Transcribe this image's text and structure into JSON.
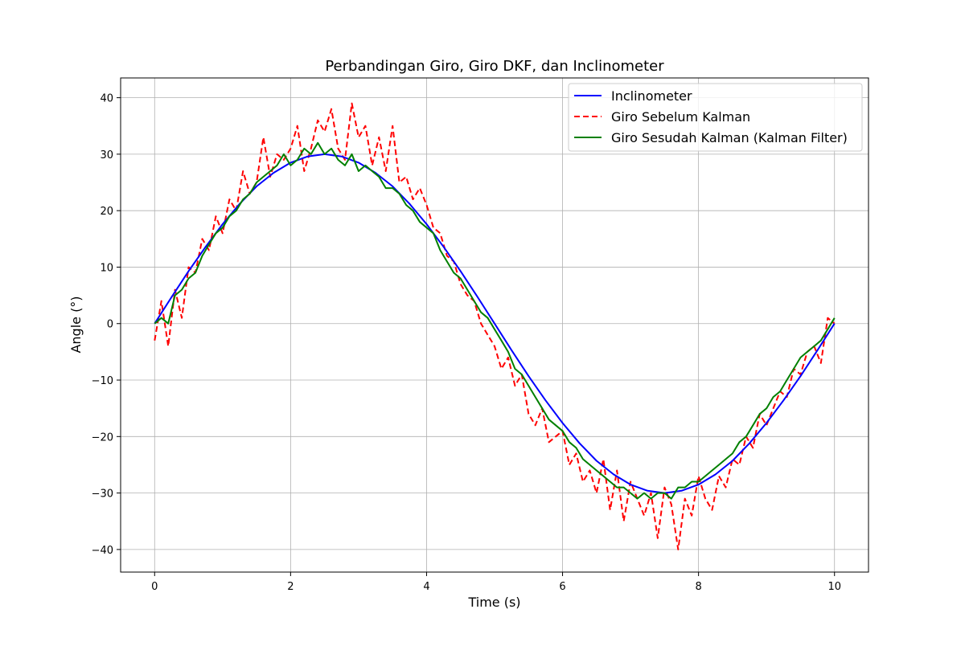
{
  "chart_data": {
    "type": "line",
    "title": "Perbandingan Giro, Giro DKF, dan Inclinometer",
    "xlabel": "Time (s)",
    "ylabel": "Angle (°)",
    "xlim": [
      -0.5,
      10.5
    ],
    "ylim": [
      -44,
      43.5
    ],
    "xticks": [
      0,
      2,
      4,
      6,
      8,
      10
    ],
    "yticks": [
      -40,
      -30,
      -20,
      -10,
      0,
      10,
      20,
      30,
      40
    ],
    "grid": true,
    "legend_position": "upper-right",
    "series": [
      {
        "name": "Inclinometer",
        "color": "#0000ff",
        "style": "solid",
        "x": [
          0,
          0.25,
          0.5,
          0.75,
          1,
          1.25,
          1.5,
          1.75,
          2,
          2.25,
          2.5,
          2.75,
          3,
          3.25,
          3.5,
          3.75,
          4,
          4.25,
          4.5,
          4.75,
          5,
          5.25,
          5.5,
          5.75,
          6,
          6.25,
          6.5,
          6.75,
          7,
          7.25,
          7.5,
          7.75,
          8,
          8.25,
          8.5,
          8.75,
          9,
          9.25,
          9.5,
          9.75,
          10
        ],
        "y": [
          0,
          4.7,
          9.3,
          13.6,
          17.6,
          21.2,
          24.3,
          26.7,
          28.5,
          29.6,
          30,
          29.6,
          28.5,
          26.7,
          24.3,
          21.2,
          17.6,
          13.6,
          9.3,
          4.7,
          0,
          -4.7,
          -9.3,
          -13.6,
          -17.6,
          -21.2,
          -24.3,
          -26.7,
          -28.5,
          -29.6,
          -30,
          -29.6,
          -28.5,
          -26.7,
          -24.3,
          -21.2,
          -17.6,
          -13.6,
          -9.3,
          -4.7,
          0
        ]
      },
      {
        "name": "Giro Sebelum Kalman",
        "color": "#ff0000",
        "style": "dashed",
        "x": [
          0,
          0.1,
          0.2,
          0.3,
          0.4,
          0.5,
          0.6,
          0.7,
          0.8,
          0.9,
          1.0,
          1.1,
          1.2,
          1.3,
          1.4,
          1.5,
          1.6,
          1.7,
          1.8,
          1.9,
          2.0,
          2.1,
          2.2,
          2.3,
          2.4,
          2.5,
          2.6,
          2.7,
          2.8,
          2.9,
          3.0,
          3.1,
          3.2,
          3.3,
          3.4,
          3.5,
          3.6,
          3.7,
          3.8,
          3.9,
          4.0,
          4.1,
          4.2,
          4.3,
          4.4,
          4.5,
          4.6,
          4.7,
          4.8,
          4.9,
          5.0,
          5.1,
          5.2,
          5.3,
          5.4,
          5.5,
          5.6,
          5.7,
          5.8,
          5.9,
          6.0,
          6.1,
          6.2,
          6.3,
          6.4,
          6.5,
          6.6,
          6.7,
          6.8,
          6.9,
          7.0,
          7.1,
          7.2,
          7.3,
          7.4,
          7.5,
          7.6,
          7.7,
          7.8,
          7.9,
          8.0,
          8.1,
          8.2,
          8.3,
          8.4,
          8.5,
          8.6,
          8.7,
          8.8,
          8.9,
          9.0,
          9.1,
          9.2,
          9.3,
          9.4,
          9.5,
          9.6,
          9.7,
          9.8,
          9.9,
          10.0
        ],
        "y": [
          -3,
          4,
          -4,
          6,
          1,
          10,
          9,
          15,
          13,
          19,
          16,
          22,
          20,
          27,
          23,
          25,
          33,
          26,
          30,
          29,
          31,
          35,
          27,
          31,
          36,
          34,
          38,
          31,
          29,
          39,
          33,
          35,
          28,
          33,
          27,
          35,
          25,
          26,
          22,
          24,
          21,
          17,
          16,
          12,
          11,
          7,
          5,
          4,
          0,
          -2,
          -4,
          -8,
          -6,
          -11,
          -9,
          -16,
          -18,
          -15,
          -21,
          -20,
          -19,
          -25,
          -23,
          -28,
          -26,
          -30,
          -24,
          -33,
          -26,
          -35,
          -28,
          -31,
          -34,
          -30,
          -38,
          -29,
          -32,
          -40,
          -31,
          -34,
          -27,
          -31,
          -33,
          -27,
          -29,
          -24,
          -25,
          -20,
          -22,
          -16,
          -18,
          -15,
          -12,
          -13,
          -8,
          -9,
          -5,
          -4,
          -7,
          1,
          0
        ]
      },
      {
        "name": "Giro Sesudah Kalman (Kalman Filter)",
        "color": "#008000",
        "style": "solid",
        "x": [
          0,
          0.1,
          0.2,
          0.3,
          0.4,
          0.5,
          0.6,
          0.7,
          0.8,
          0.9,
          1.0,
          1.1,
          1.2,
          1.3,
          1.4,
          1.5,
          1.6,
          1.7,
          1.8,
          1.9,
          2.0,
          2.1,
          2.2,
          2.3,
          2.4,
          2.5,
          2.6,
          2.7,
          2.8,
          2.9,
          3.0,
          3.1,
          3.2,
          3.3,
          3.4,
          3.5,
          3.6,
          3.7,
          3.8,
          3.9,
          4.0,
          4.1,
          4.2,
          4.3,
          4.4,
          4.5,
          4.6,
          4.7,
          4.8,
          4.9,
          5.0,
          5.1,
          5.2,
          5.3,
          5.4,
          5.5,
          5.6,
          5.7,
          5.8,
          5.9,
          6.0,
          6.1,
          6.2,
          6.3,
          6.4,
          6.5,
          6.6,
          6.7,
          6.8,
          6.9,
          7.0,
          7.1,
          7.2,
          7.3,
          7.4,
          7.5,
          7.6,
          7.7,
          7.8,
          7.9,
          8.0,
          8.1,
          8.2,
          8.3,
          8.4,
          8.5,
          8.6,
          8.7,
          8.8,
          8.9,
          9.0,
          9.1,
          9.2,
          9.3,
          9.4,
          9.5,
          9.6,
          9.7,
          9.8,
          9.9,
          10.0
        ],
        "y": [
          0,
          1,
          0,
          5,
          6,
          8,
          9,
          12,
          14,
          16,
          17,
          19,
          20,
          22,
          23,
          25,
          26,
          27,
          28,
          30,
          28,
          29,
          31,
          30,
          32,
          30,
          31,
          29,
          28,
          30,
          27,
          28,
          27,
          26,
          24,
          24,
          23,
          21,
          20,
          18,
          17,
          16,
          13,
          11,
          9,
          8,
          6,
          4,
          2,
          1,
          -1,
          -3,
          -5,
          -8,
          -9,
          -11,
          -13,
          -15,
          -17,
          -18,
          -19,
          -21,
          -22,
          -24,
          -25,
          -26,
          -27,
          -28,
          -29,
          -29,
          -30,
          -31,
          -30,
          -31,
          -30,
          -30,
          -31,
          -29,
          -29,
          -28,
          -28,
          -27,
          -26,
          -25,
          -24,
          -23,
          -21,
          -20,
          -18,
          -16,
          -15,
          -13,
          -12,
          -10,
          -8,
          -6,
          -5,
          -4,
          -3,
          -1,
          1
        ]
      }
    ]
  }
}
